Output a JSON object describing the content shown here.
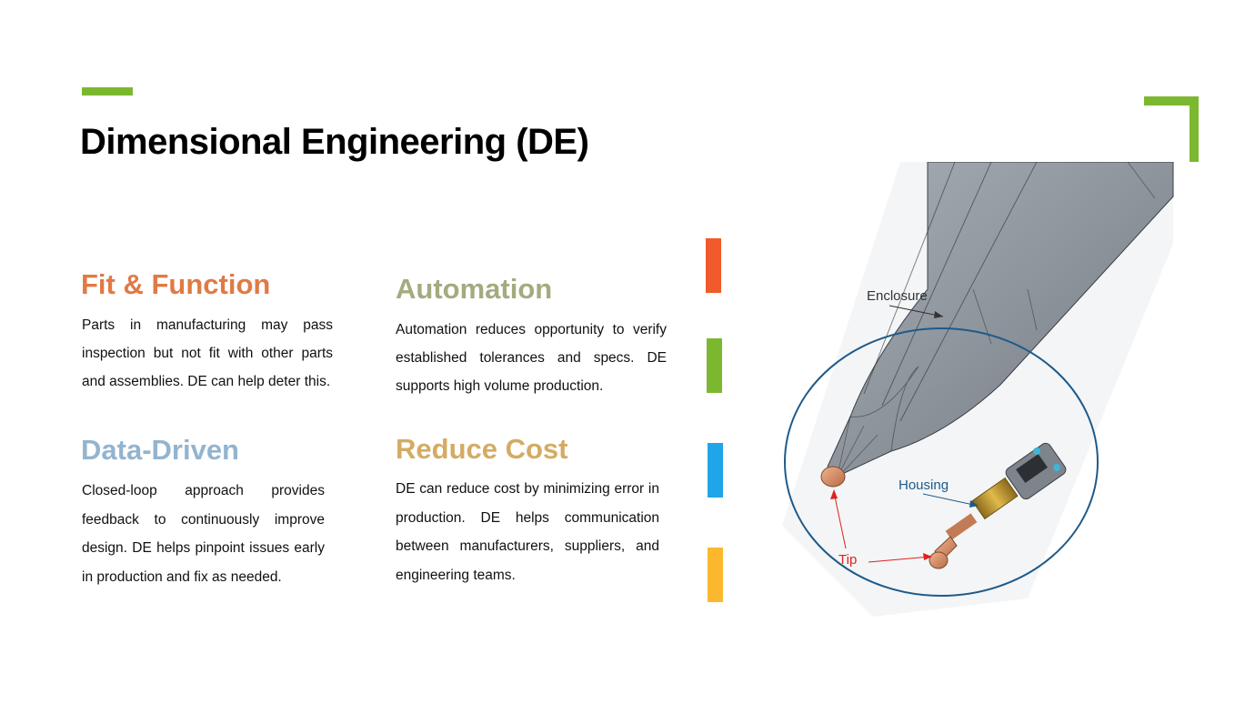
{
  "title": "Dimensional Engineering (DE)",
  "colors": {
    "accent_green": "#7cb82f",
    "fit": "#e07a45",
    "automation": "#a3ab7f",
    "data": "#93b4cf",
    "cost": "#d4ab63",
    "bar_orange": "#f15a2b",
    "bar_green": "#7cb82f",
    "bar_blue": "#1fa5e8",
    "bar_yellow": "#fbb82f"
  },
  "sections": [
    {
      "heading": "Fit & Function",
      "body": "Parts in manufacturing may pass inspection but not fit with other parts and assemblies. DE can help deter this."
    },
    {
      "heading": "Automation",
      "body": "Automation reduces opportunity to verify established tolerances and specs. DE supports high volume production."
    },
    {
      "heading": "Data-Driven",
      "body": "Closed-loop approach provides feedback to continuously improve design. DE helps pinpoint issues early in production and fix as needed."
    },
    {
      "heading": "Reduce Cost",
      "body": "DE can reduce cost by minimizing error in production. DE helps communication between manufacturers, suppliers, and engineering teams."
    }
  ],
  "figure": {
    "labels": {
      "enclosure": "Enclosure",
      "housing": "Housing",
      "tip": "Tip"
    }
  }
}
